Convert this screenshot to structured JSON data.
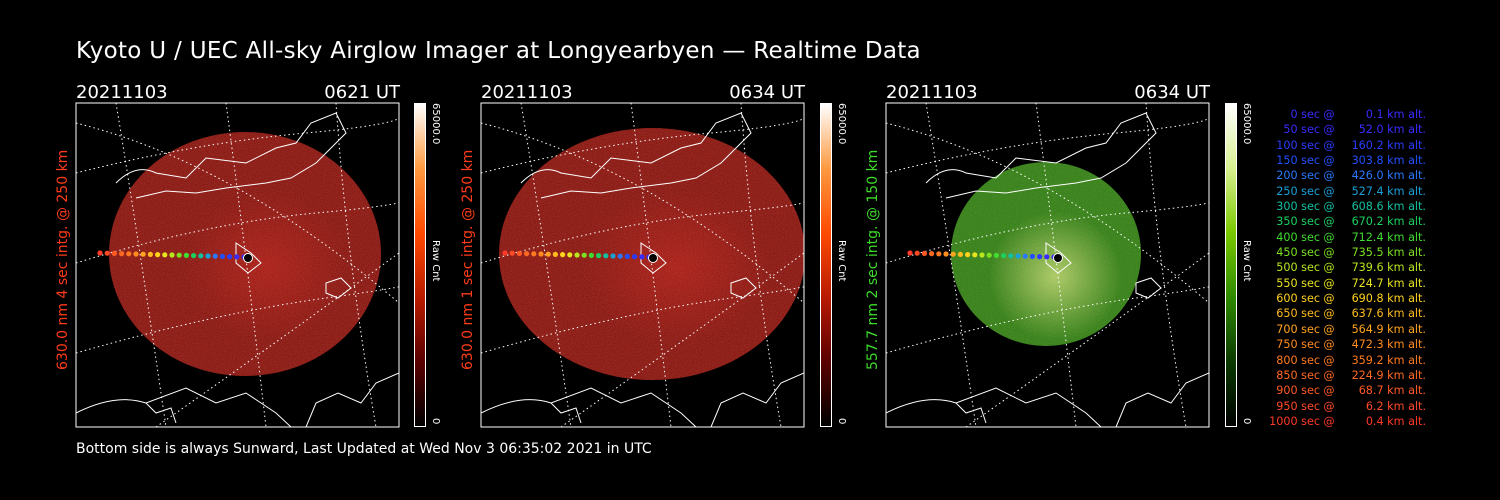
{
  "title": "Kyoto U / UEC All-sky Airglow Imager at Longyearbyen — Realtime Data",
  "footer": "Bottom side is always Sunward, Last Updated at Wed Nov  3 06:35:02 2021 in UTC",
  "panels": [
    {
      "date": "20211103",
      "time": "0621 UT",
      "ylabel": "630.0 nm 4 sec intg. @ 250 km",
      "label_color": "#ff3b1a",
      "colorbar_max": "65000.0",
      "colorbar_min": "0",
      "colorbar_unit": "Raw Cnt",
      "colorbar_colors": [
        "#000000",
        "#5a0000",
        "#b81a00",
        "#ff4a00",
        "#ff9a40",
        "#ffffff"
      ],
      "image_color": "#8a0d06"
    },
    {
      "date": "20211103",
      "time": "0634 UT",
      "ylabel": "630.0 nm 1 sec intg. @ 250 km",
      "label_color": "#ff3b1a",
      "colorbar_max": "65000.0",
      "colorbar_min": "0",
      "colorbar_unit": "Raw Cnt",
      "colorbar_colors": [
        "#000000",
        "#5a0000",
        "#b81a00",
        "#ff4a00",
        "#ff9a40",
        "#ffffff"
      ],
      "image_color": "#8a0d06"
    },
    {
      "date": "20211103",
      "time": "0634 UT",
      "ylabel": "557.7 nm 2 sec intg. @ 150 km",
      "label_color": "#3ddc2a",
      "colorbar_max": "65000.0",
      "colorbar_min": "0",
      "colorbar_unit": "Raw Cnt",
      "colorbar_colors": [
        "#000000",
        "#0a3a00",
        "#2f8a00",
        "#7ac800",
        "#d8f090",
        "#ffffff"
      ],
      "image_color": "#2e7e0c"
    }
  ],
  "legend": [
    {
      "time": "0 sec",
      "alt": "0.1 km alt.",
      "color": "#3a2bff"
    },
    {
      "time": "50 sec",
      "alt": "52.0 km alt.",
      "color": "#3a2bff"
    },
    {
      "time": "100 sec",
      "alt": "160.2 km alt.",
      "color": "#2a3cff"
    },
    {
      "time": "150 sec",
      "alt": "303.8 km alt.",
      "color": "#2250ff"
    },
    {
      "time": "200 sec",
      "alt": "426.0 km alt.",
      "color": "#2a78ff"
    },
    {
      "time": "250 sec",
      "alt": "527.4 km alt.",
      "color": "#1aa0d8"
    },
    {
      "time": "300 sec",
      "alt": "608.6 km alt.",
      "color": "#12c0a0"
    },
    {
      "time": "350 sec",
      "alt": "670.2 km alt.",
      "color": "#1cd060"
    },
    {
      "time": "400 sec",
      "alt": "712.4 km alt.",
      "color": "#40dc30"
    },
    {
      "time": "450 sec",
      "alt": "735.5 km alt.",
      "color": "#7ae020"
    },
    {
      "time": "500 sec",
      "alt": "739.6 km alt.",
      "color": "#b8e61e"
    },
    {
      "time": "550 sec",
      "alt": "724.7 km alt.",
      "color": "#e8e420"
    },
    {
      "time": "600 sec",
      "alt": "690.8 km alt.",
      "color": "#ffd21e"
    },
    {
      "time": "650 sec",
      "alt": "637.6 km alt.",
      "color": "#ffbc1e"
    },
    {
      "time": "700 sec",
      "alt": "564.9 km alt.",
      "color": "#ffa41e"
    },
    {
      "time": "750 sec",
      "alt": "472.3 km alt.",
      "color": "#ff8c1e"
    },
    {
      "time": "800 sec",
      "alt": "359.2 km alt.",
      "color": "#ff7a20"
    },
    {
      "time": "850 sec",
      "alt": "224.9 km alt.",
      "color": "#ff6a22"
    },
    {
      "time": "900 sec",
      "alt": "68.7 km alt.",
      "color": "#ff5a24"
    },
    {
      "time": "950 sec",
      "alt": "6.2 km alt.",
      "color": "#ff4a26"
    },
    {
      "time": "1000 sec",
      "alt": "0.4 km alt.",
      "color": "#ff3a28"
    }
  ],
  "legend_at": "@"
}
